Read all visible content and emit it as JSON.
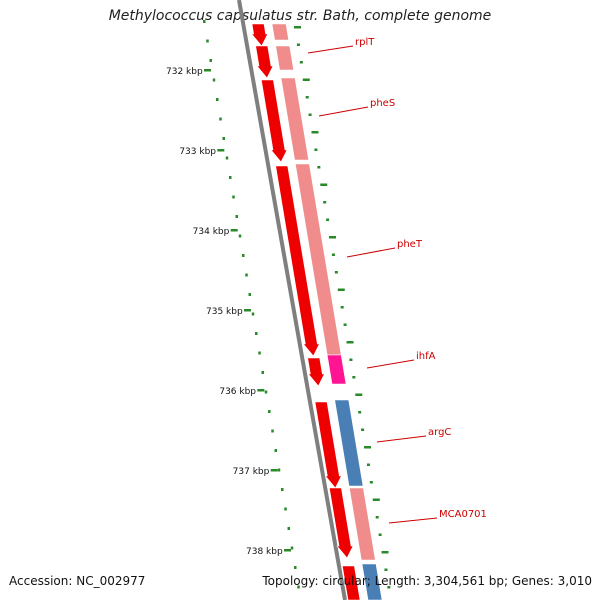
{
  "title": "Methylococcus capsulatus str. Bath, complete genome",
  "footer": {
    "accession": "Accession: NC_002977",
    "summary": "Topology: circular; Length: 3,304,561 bp; Genes: 3,010"
  },
  "ruler": {
    "unit": "kbp",
    "labels": [
      "732 kbp",
      "733 kbp",
      "734 kbp",
      "735 kbp",
      "736 kbp",
      "737 kbp",
      "738 kbp"
    ]
  },
  "genes": [
    {
      "name": "rplT",
      "color": "#cc0000"
    },
    {
      "name": "pheS",
      "color": "#cc0000"
    },
    {
      "name": "pheT",
      "color": "#cc0000"
    },
    {
      "name": "ihfA",
      "color": "#cc0000"
    },
    {
      "name": "argC",
      "color": "#cc0000"
    },
    {
      "name": "MCA0701",
      "color": "#cc0000"
    }
  ],
  "colors": {
    "backbone": "#7f7f7f",
    "cds_strand": "#ee0000",
    "gene_feature": "#f08c8c",
    "misc_feature": "#ff1493",
    "blue_feature": "#4a7fb5",
    "gc_skew_ticks": "#2a8a2a"
  }
}
